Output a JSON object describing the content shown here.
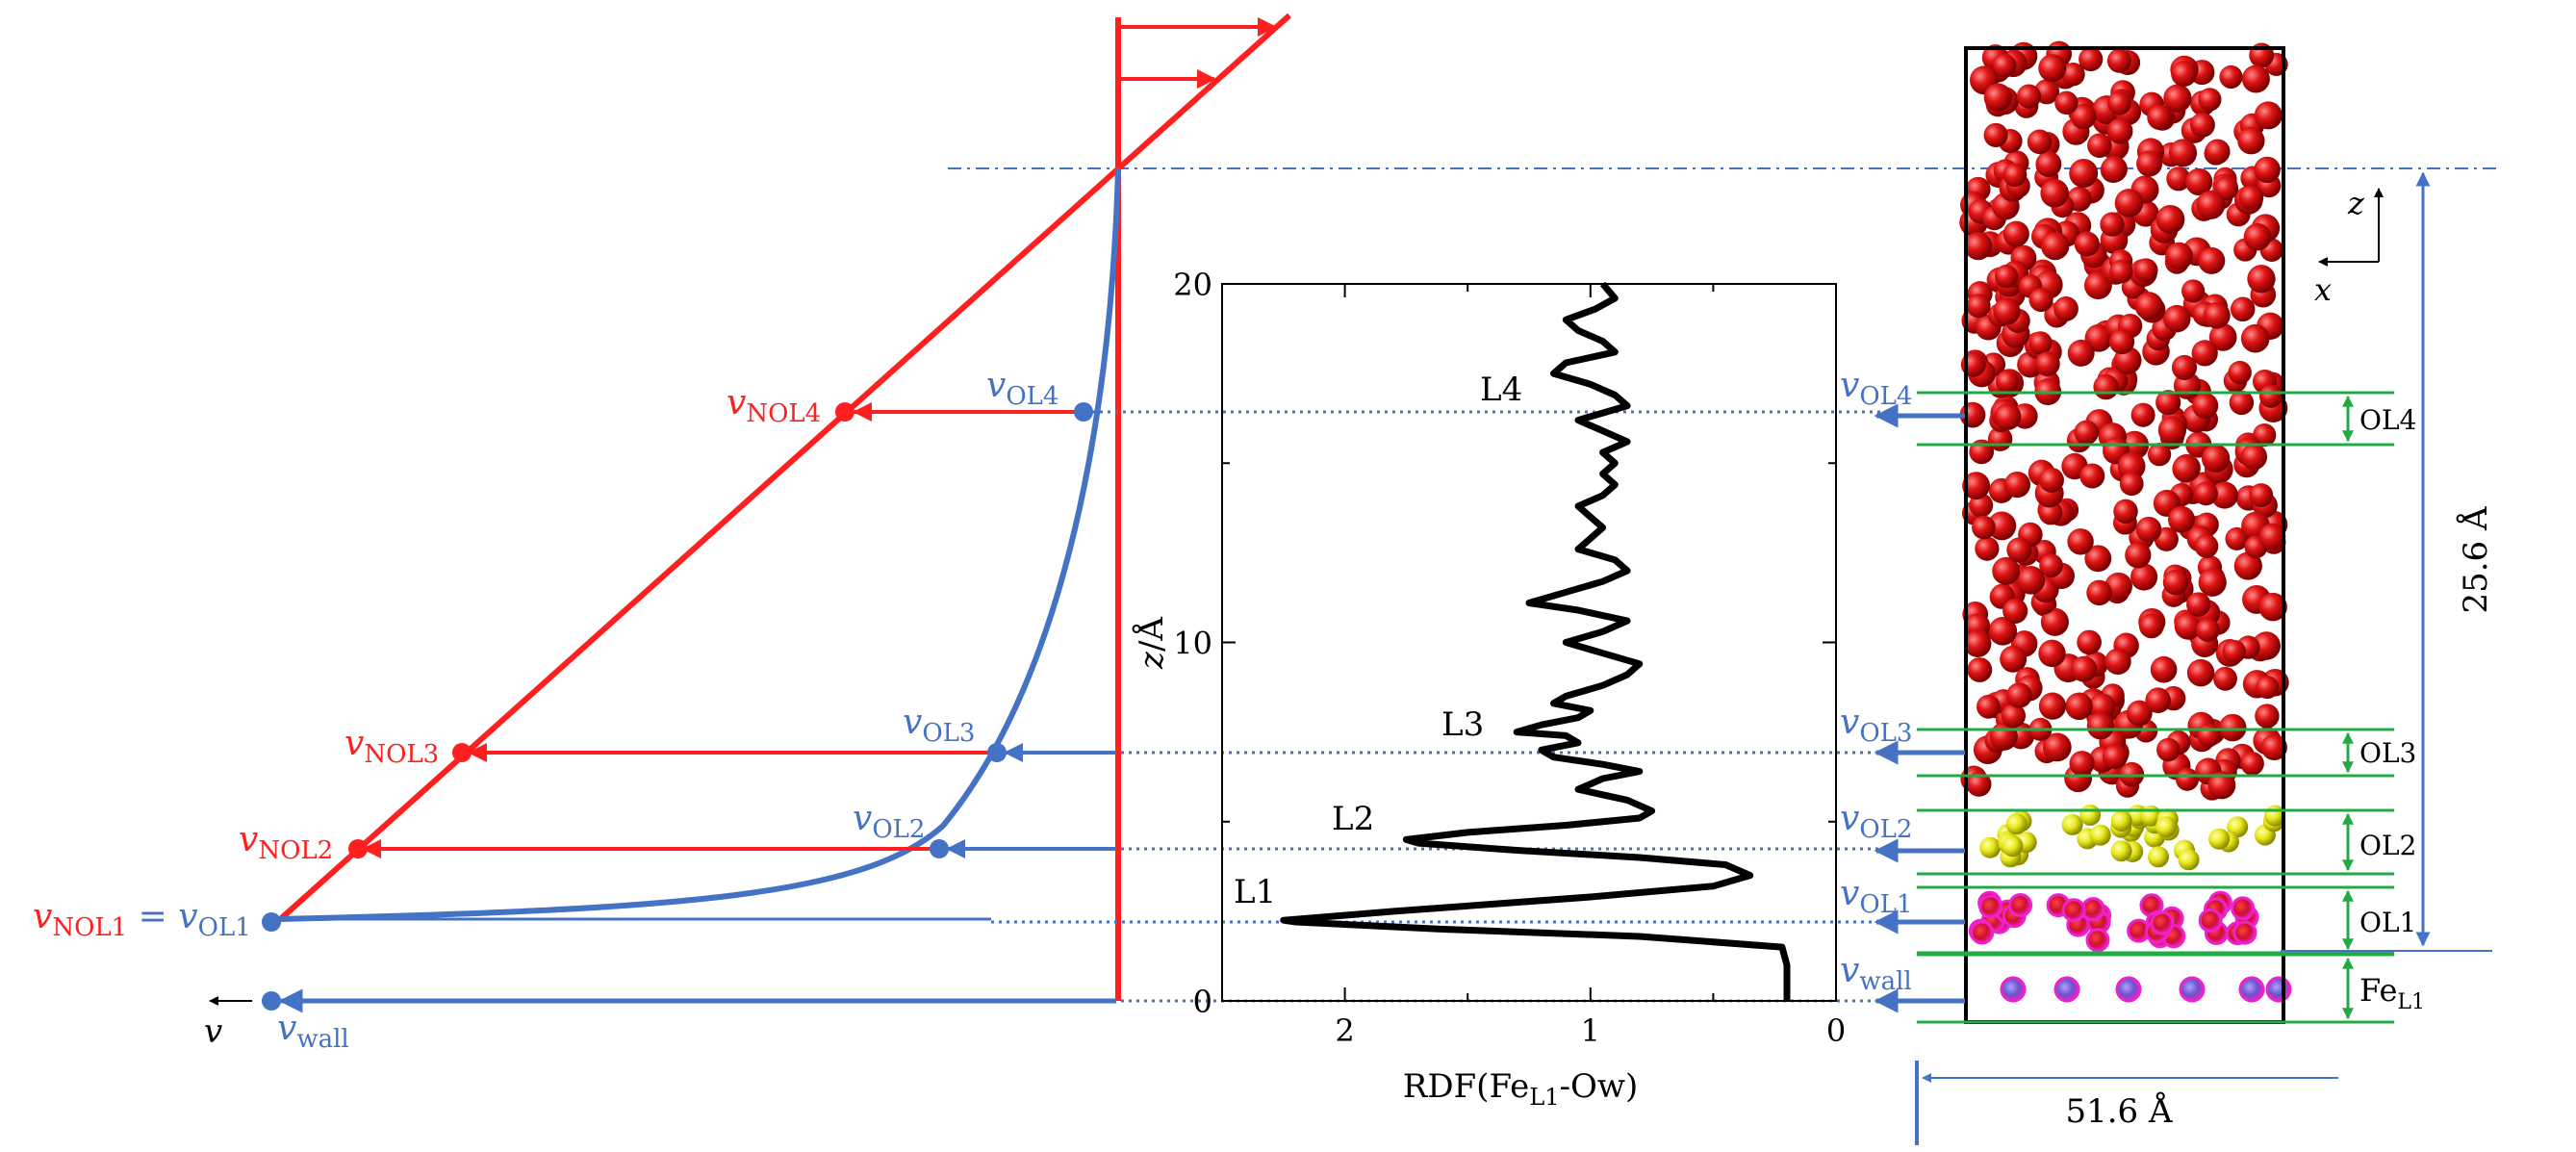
{
  "colors": {
    "red": "#ff1f1f",
    "blue": "#4472c4",
    "green": "#22aa44",
    "black": "#000000",
    "atom_red": "#dd1111",
    "atom_yellow": "#e4e418",
    "atom_magenta": "#ee22cc"
  },
  "velocity_profile": {
    "labels_red": {
      "nol4": {
        "v": "v",
        "sub": "NOL4"
      },
      "nol3": {
        "v": "v",
        "sub": "NOL3"
      },
      "nol2": {
        "v": "v",
        "sub": "NOL2"
      },
      "nol1": {
        "v": "v",
        "sub": "NOL1",
        "eq": " = "
      }
    },
    "labels_blue": {
      "ol4": {
        "v": "v",
        "sub": "OL4"
      },
      "ol3": {
        "v": "v",
        "sub": "OL3"
      },
      "ol2": {
        "v": "v",
        "sub": "OL2"
      },
      "ol1": {
        "v": "v",
        "sub": "OL1"
      },
      "wall": {
        "v": "v",
        "sub": "wall"
      }
    },
    "axis_label": "v"
  },
  "rdf_panel": {
    "y_label": {
      "italic": "z",
      "rest": "/Å"
    },
    "x_label": {
      "pre": "RDF(Fe",
      "sub": "L1",
      "post": "-Ow)"
    },
    "y_ticks": [
      "0",
      "10",
      "20"
    ],
    "x_ticks": [
      "2",
      "1",
      "0"
    ],
    "layer_labels": [
      "L1",
      "L2",
      "L3",
      "L4"
    ]
  },
  "chart_data": {
    "type": "line",
    "xlabel": "RDF(FeL1-Ow)",
    "ylabel": "z/Å",
    "xlim": [
      2.5,
      0
    ],
    "ylim": [
      0,
      20
    ],
    "x_ticks": [
      2,
      1,
      0
    ],
    "y_ticks": [
      0,
      10,
      20
    ],
    "series": [
      {
        "points": [
          [
            0.2,
            0.0
          ],
          [
            0.2,
            1.0
          ],
          [
            0.22,
            1.5
          ],
          [
            0.8,
            1.8
          ],
          [
            1.6,
            2.0
          ],
          [
            2.2,
            2.2
          ],
          [
            2.25,
            2.25
          ],
          [
            1.8,
            2.5
          ],
          [
            1.0,
            2.9
          ],
          [
            0.5,
            3.2
          ],
          [
            0.35,
            3.5
          ],
          [
            0.45,
            3.8
          ],
          [
            0.8,
            4.0
          ],
          [
            1.3,
            4.2
          ],
          [
            1.7,
            4.4
          ],
          [
            1.75,
            4.5
          ],
          [
            1.5,
            4.7
          ],
          [
            1.1,
            4.9
          ],
          [
            0.8,
            5.1
          ],
          [
            0.75,
            5.3
          ],
          [
            0.85,
            5.6
          ],
          [
            1.05,
            5.9
          ],
          [
            0.95,
            6.2
          ],
          [
            0.8,
            6.4
          ],
          [
            0.95,
            6.6
          ],
          [
            1.15,
            6.8
          ],
          [
            1.2,
            7.0
          ],
          [
            1.05,
            7.2
          ],
          [
            1.1,
            7.4
          ],
          [
            1.3,
            7.5
          ],
          [
            1.2,
            7.7
          ],
          [
            1.05,
            7.9
          ],
          [
            1.0,
            8.1
          ],
          [
            1.15,
            8.3
          ],
          [
            1.1,
            8.5
          ],
          [
            0.95,
            8.8
          ],
          [
            0.85,
            9.1
          ],
          [
            0.8,
            9.4
          ],
          [
            0.95,
            9.7
          ],
          [
            1.1,
            10.0
          ],
          [
            0.95,
            10.3
          ],
          [
            0.85,
            10.6
          ],
          [
            1.05,
            10.9
          ],
          [
            1.25,
            11.1
          ],
          [
            1.1,
            11.4
          ],
          [
            0.95,
            11.7
          ],
          [
            0.85,
            12.0
          ],
          [
            0.9,
            12.3
          ],
          [
            1.05,
            12.6
          ],
          [
            1.0,
            12.9
          ],
          [
            0.95,
            13.2
          ],
          [
            1.0,
            13.5
          ],
          [
            1.05,
            13.8
          ],
          [
            0.95,
            14.1
          ],
          [
            0.9,
            14.4
          ],
          [
            0.95,
            14.7
          ],
          [
            0.9,
            15.0
          ],
          [
            0.95,
            15.3
          ],
          [
            0.85,
            15.6
          ],
          [
            0.95,
            15.9
          ],
          [
            1.05,
            16.2
          ],
          [
            0.95,
            16.4
          ],
          [
            0.85,
            16.6
          ],
          [
            0.9,
            16.9
          ],
          [
            1.0,
            17.2
          ],
          [
            1.15,
            17.5
          ],
          [
            1.1,
            17.8
          ],
          [
            0.9,
            18.1
          ],
          [
            0.95,
            18.4
          ],
          [
            1.05,
            18.7
          ],
          [
            1.1,
            19.0
          ],
          [
            0.98,
            19.3
          ],
          [
            0.9,
            19.6
          ],
          [
            0.95,
            20.0
          ]
        ]
      }
    ]
  },
  "simulation_box": {
    "axes": {
      "z": "z",
      "x": "x"
    },
    "layers": [
      {
        "name": "OL4"
      },
      {
        "name": "OL3"
      },
      {
        "name": "OL2"
      },
      {
        "name": "OL1"
      },
      {
        "name": "Fe",
        "sub": "L1"
      }
    ],
    "velocity_labels": [
      {
        "v": "v",
        "sub": "OL4"
      },
      {
        "v": "v",
        "sub": "OL3"
      },
      {
        "v": "v",
        "sub": "OL2"
      },
      {
        "v": "v",
        "sub": "OL1"
      },
      {
        "v": "v",
        "sub": "wall"
      }
    ],
    "height_label": "25.6 Å",
    "width_label": "51.6 Å"
  }
}
